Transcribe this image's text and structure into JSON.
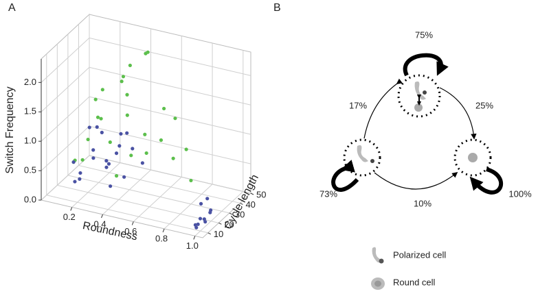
{
  "panel_a_label": "A",
  "panel_b_label": "B",
  "chart_data": {
    "type": "scatter3d",
    "xlabel": "Roundness",
    "ylabel": "Cycle length",
    "zlabel": "Switch Frequency",
    "xlim": [
      0,
      1.05
    ],
    "xticks": [
      0.2,
      0.4,
      0.6,
      0.8,
      {
        "value": 1,
        "label": "1.0"
      }
    ],
    "ylim": [
      5,
      50
    ],
    "yticks": [
      10,
      20,
      30,
      40,
      50
    ],
    "zlim": [
      0,
      2.4
    ],
    "zticks": [
      {
        "value": 0,
        "label": "0.0"
      },
      0.5,
      {
        "value": 1,
        "label": "1.0"
      },
      1.5,
      {
        "value": 2,
        "label": "2.0"
      }
    ],
    "grid": true,
    "series": [
      {
        "color": "#5cbf4c",
        "x": [
          0.15,
          0.25,
          0.35,
          0.2,
          0.45,
          0.5,
          0.3,
          0.12,
          0.4,
          0.55,
          0.22,
          0.6,
          0.33,
          0.18,
          0.28,
          0.65,
          0.38,
          0.48,
          0.8,
          0.26,
          0.42,
          0.52,
          0.16,
          0.7,
          0.58,
          0.36
        ],
        "y": [
          15,
          25,
          35,
          20,
          40,
          30,
          45,
          18,
          28,
          38,
          12,
          44,
          22,
          30,
          40,
          35,
          48,
          20,
          30,
          25,
          15,
          45,
          35,
          40,
          20,
          30
        ],
        "z": [
          0.6,
          1.2,
          1.5,
          0.9,
          2.2,
          1.0,
          1.8,
          0.5,
          1.3,
          0.8,
          0.7,
          1.1,
          0.9,
          1.4,
          1.6,
          0.6,
          2.0,
          0.8,
          0.4,
          1.7,
          0.5,
          1.2,
          1.0,
          0.7,
          0.9,
          1.9
        ]
      },
      {
        "color": "#4a52a3",
        "x": [
          0.15,
          0.2,
          0.25,
          0.18,
          0.3,
          0.22,
          0.12,
          0.28,
          0.35,
          0.2,
          0.17,
          0.26,
          0.4,
          0.32,
          0.24,
          0.14,
          0.45,
          0.38,
          0.3,
          0.21,
          0.95,
          0.97,
          0.93,
          0.98,
          0.96,
          0.9,
          0.99,
          0.94,
          0.97,
          0.92
        ],
        "y": [
          20,
          25,
          30,
          15,
          35,
          22,
          18,
          28,
          40,
          33,
          12,
          38,
          25,
          20,
          45,
          30,
          35,
          15,
          42,
          27,
          15,
          18,
          20,
          22,
          12,
          25,
          16,
          14,
          24,
          28
        ],
        "z": [
          0.3,
          0.5,
          0.4,
          0.3,
          0.6,
          0.7,
          0.5,
          0.4,
          0.5,
          0.8,
          0.3,
          0.4,
          0.3,
          0.5,
          0.6,
          0.9,
          0.4,
          0.3,
          0.7,
          1.0,
          0.0,
          0.05,
          0.0,
          0.1,
          0.0,
          0.15,
          0.05,
          0.0,
          0.1,
          0.2
        ]
      }
    ]
  },
  "diagram": {
    "self_loops": [
      "75%",
      "73%",
      "100%"
    ],
    "edges": [
      "17%",
      "25%",
      "10%"
    ],
    "legend": [
      "Polarized cell",
      "Round cell"
    ]
  }
}
